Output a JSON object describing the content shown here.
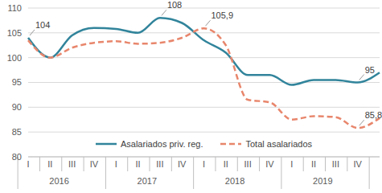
{
  "chart_data": {
    "type": "line",
    "categories": [
      "I",
      "II",
      "III",
      "IV",
      "I",
      "II",
      "III",
      "IV",
      "I",
      "II",
      "III",
      "IV",
      "I",
      "II",
      "III",
      "IV",
      null
    ],
    "x_groups": [
      {
        "label": "2016",
        "count": 4
      },
      {
        "label": "2017",
        "count": 4
      },
      {
        "label": "2018",
        "count": 4
      },
      {
        "label": "2019",
        "count": 4
      }
    ],
    "series": [
      {
        "name": "Asalariados priv. reg.",
        "color": "#31849B",
        "line_style": "solid",
        "values": [
          104,
          100,
          104.5,
          106,
          105.8,
          105,
          108,
          107,
          103.5,
          101,
          96.5,
          96.5,
          94.5,
          95.5,
          95.5,
          95,
          97
        ]
      },
      {
        "name": "Total asalariados",
        "color": "#E8866C",
        "line_style": "dashed",
        "values": [
          103.5,
          100,
          102,
          103,
          103.3,
          102.8,
          103,
          104,
          105.9,
          102.5,
          91.5,
          91,
          87.5,
          88.2,
          88,
          85.8,
          87.8
        ]
      }
    ],
    "ylim": [
      80,
      110
    ],
    "yticks": [
      80,
      85,
      90,
      95,
      100,
      105,
      110
    ],
    "grid": true,
    "legend": "bottom",
    "annotations": [
      {
        "series": "Asalariados priv. reg.",
        "index": 0,
        "label": "104"
      },
      {
        "series": "Asalariados priv. reg.",
        "index": 6,
        "label": "108"
      },
      {
        "series": "Total asalariados",
        "index": 8,
        "label": "105,9"
      },
      {
        "series": "Asalariados priv. reg.",
        "index": 15,
        "label": "95"
      },
      {
        "series": "Total asalariados",
        "index": 15,
        "label": "85,8"
      }
    ]
  }
}
